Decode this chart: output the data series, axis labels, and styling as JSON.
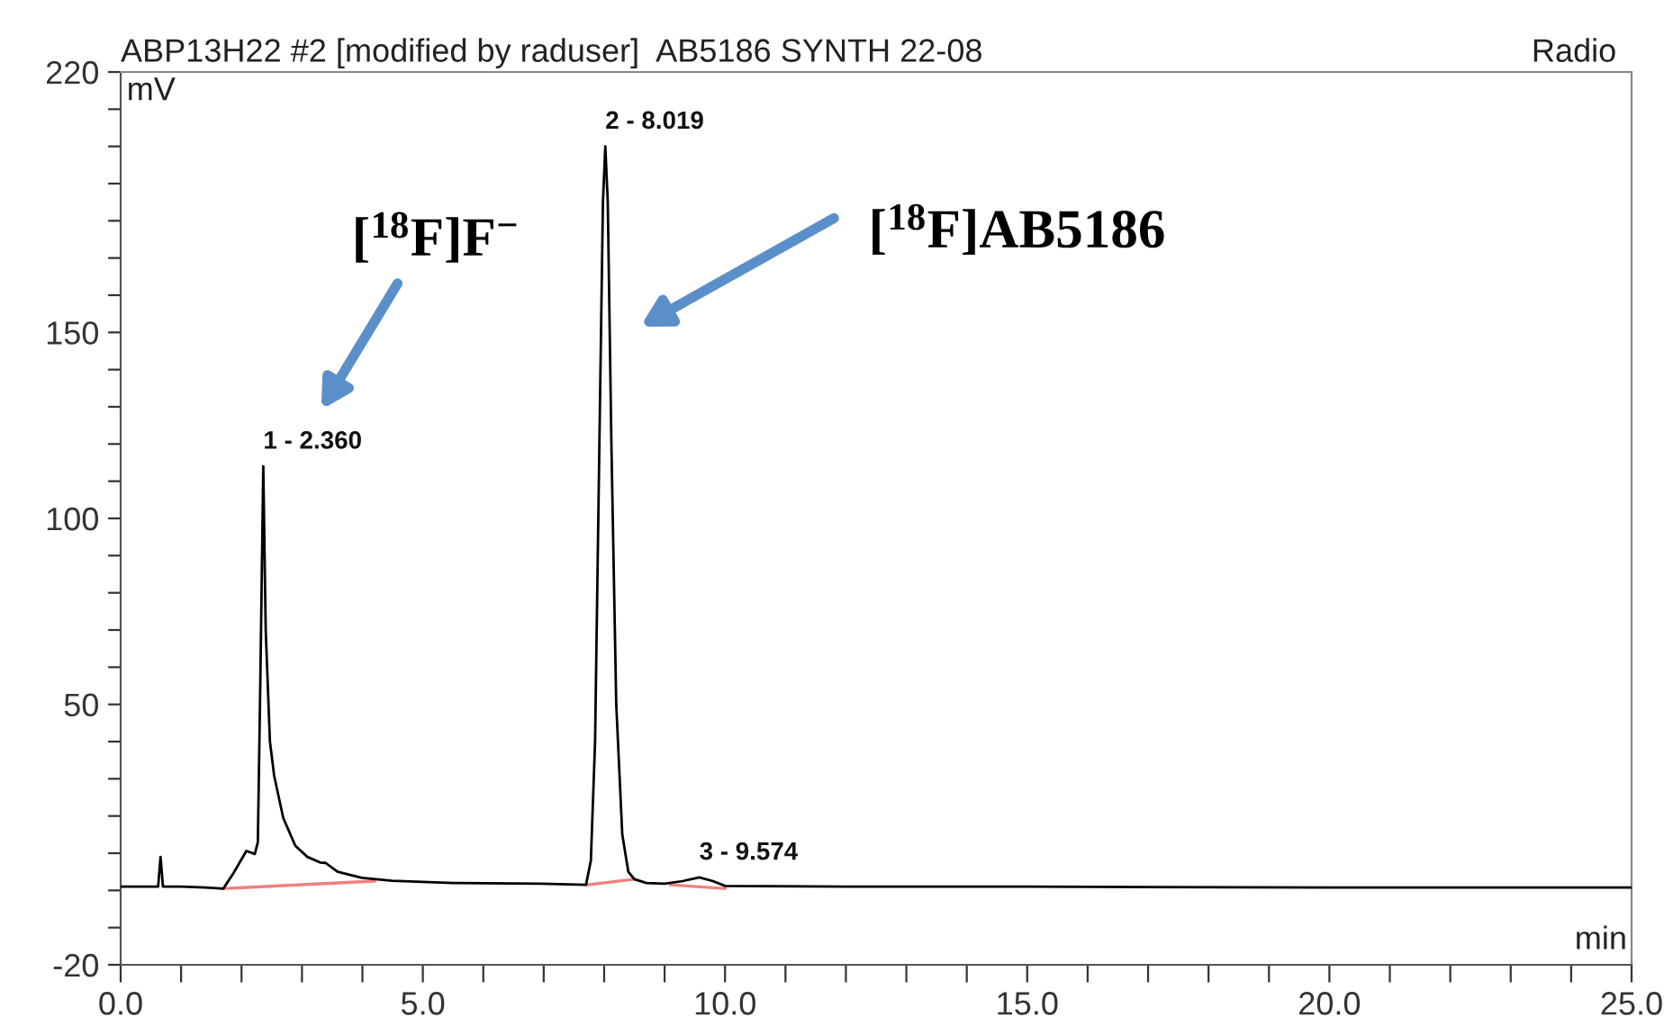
{
  "chart_data": {
    "type": "line",
    "title": "ABP13H22 #2 [modified by raduser]  AB5186 SYNTH 22-08",
    "subtitle": "Radio",
    "xlabel": "min",
    "ylabel": "mV",
    "xlim": [
      0,
      25
    ],
    "ylim": [
      -20,
      220
    ],
    "xticks": [
      {
        "value": 0,
        "label": "0.0"
      },
      {
        "value": 1,
        "label": null
      },
      {
        "value": 2,
        "label": null
      },
      {
        "value": 3,
        "label": null
      },
      {
        "value": 4,
        "label": null
      },
      {
        "value": 5,
        "label": "5.0"
      },
      {
        "value": 6,
        "label": null
      },
      {
        "value": 7,
        "label": null
      },
      {
        "value": 8,
        "label": null
      },
      {
        "value": 9,
        "label": null
      },
      {
        "value": 10,
        "label": "10.0"
      },
      {
        "value": 11,
        "label": null
      },
      {
        "value": 12,
        "label": null
      },
      {
        "value": 13,
        "label": null
      },
      {
        "value": 14,
        "label": null
      },
      {
        "value": 15,
        "label": "15.0"
      },
      {
        "value": 16,
        "label": null
      },
      {
        "value": 17,
        "label": null
      },
      {
        "value": 18,
        "label": null
      },
      {
        "value": 19,
        "label": null
      },
      {
        "value": 20,
        "label": "20.0"
      },
      {
        "value": 21,
        "label": null
      },
      {
        "value": 22,
        "label": null
      },
      {
        "value": 23,
        "label": null
      },
      {
        "value": 24,
        "label": null
      },
      {
        "value": 25,
        "label": "25.0"
      }
    ],
    "yticks": [
      -20,
      {
        "value": -10,
        "label": null
      },
      {
        "value": 0,
        "label": null
      },
      {
        "value": 10,
        "label": null
      },
      {
        "value": 20,
        "label": null
      },
      {
        "value": 30,
        "label": null
      },
      {
        "value": 40,
        "label": null
      },
      50,
      {
        "value": 60,
        "label": null
      },
      {
        "value": 70,
        "label": null
      },
      {
        "value": 80,
        "label": null
      },
      {
        "value": 90,
        "label": null
      },
      100,
      {
        "value": 110,
        "label": null
      },
      {
        "value": 120,
        "label": null
      },
      {
        "value": 130,
        "label": null
      },
      {
        "value": 140,
        "label": null
      },
      150,
      {
        "value": 160,
        "label": null
      },
      {
        "value": 170,
        "label": null
      },
      {
        "value": 180,
        "label": null
      },
      {
        "value": 190,
        "label": null
      },
      {
        "value": 200,
        "label": null
      },
      {
        "value": 210,
        "label": null
      },
      220
    ],
    "grid": false,
    "marker": "none",
    "line_style": "solid",
    "series": [
      {
        "color": "#000000",
        "x": [
          0,
          0.3,
          0.62,
          0.66,
          0.7,
          1.0,
          1.4,
          1.7,
          1.88,
          2.08,
          2.22,
          2.27,
          2.31,
          2.36,
          2.4,
          2.47,
          2.54,
          2.69,
          2.89,
          3.09,
          3.3,
          3.39,
          3.59,
          3.99,
          4.49,
          5.5,
          6.96,
          7.7,
          7.78,
          7.85,
          7.93,
          7.98,
          8.019,
          8.06,
          8.12,
          8.2,
          8.3,
          8.4,
          8.5,
          8.7,
          9.0,
          9.3,
          9.574,
          9.8,
          10.0,
          12.0,
          15.0,
          20.0,
          25.0
        ],
        "values": [
          1,
          1,
          1,
          9,
          1,
          1,
          0.8,
          0.5,
          5,
          10.6,
          9.8,
          13,
          55,
          114,
          70,
          40,
          30.8,
          19.5,
          12,
          9,
          7.5,
          7.4,
          5,
          3.4,
          2.6,
          2,
          1.8,
          1.5,
          8,
          40,
          130,
          185,
          200,
          185,
          120,
          50,
          15,
          5,
          3,
          2,
          1.8,
          2.5,
          3.5,
          2.5,
          1.2,
          1,
          1,
          0.8,
          0.8
        ]
      },
      {
        "color": "#f08080",
        "x": [
          1.7,
          4.2,
          5.0,
          7.72,
          8.5,
          8.8,
          9.1,
          10.0
        ],
        "values": [
          0.5,
          2.5,
          null,
          1.5,
          3,
          null,
          1.5,
          0.5
        ]
      }
    ],
    "annotations": [
      {
        "text": "1 - 2.360",
        "x": 2.36,
        "y": 114
      },
      {
        "text": "2 - 8.019",
        "x": 8.019,
        "y": 200
      },
      {
        "text": "3 - 9.574",
        "x": 9.574,
        "y": 3.5
      },
      "[$^{18}$F]F$^{−}$",
      "[$^{18}$F]AB5186"
    ]
  }
}
